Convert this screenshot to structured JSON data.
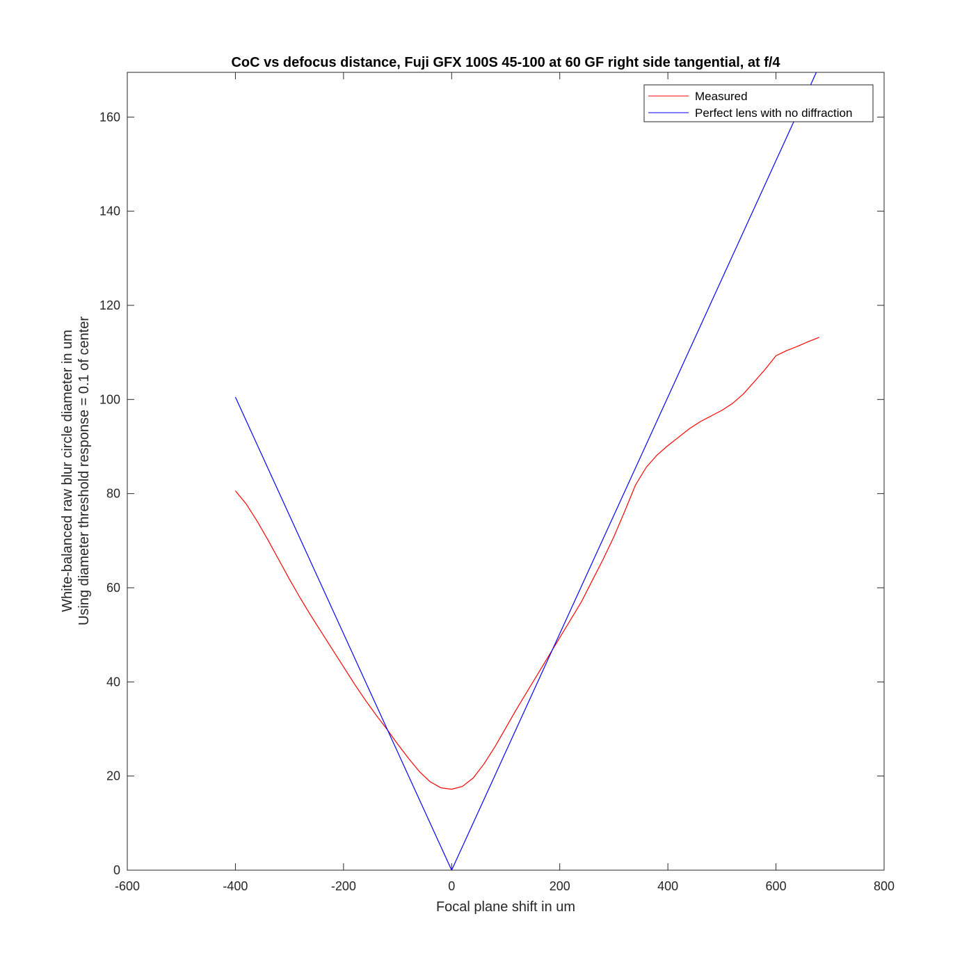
{
  "chart_data": {
    "type": "line",
    "title": "CoC vs defocus distance, Fuji GFX 100S 45-100 at 60 GF right side tangential, at f/4",
    "xlabel": "Focal plane shift in um",
    "ylabel": [
      "White-balanced raw blur circle diameter in um",
      "Using diameter threshold response = 0.1 of center"
    ],
    "xlim": [
      -600,
      800
    ],
    "ylim": [
      0,
      169.5
    ],
    "xticks": [
      -600,
      -400,
      -200,
      0,
      200,
      400,
      600,
      800
    ],
    "yticks": [
      0,
      20,
      40,
      60,
      80,
      100,
      120,
      140,
      160
    ],
    "xtick_labels": [
      "-600",
      "-400",
      "-200",
      "0",
      "200",
      "400",
      "600",
      "800"
    ],
    "ytick_labels": [
      "0",
      "20",
      "40",
      "60",
      "80",
      "100",
      "120",
      "140",
      "160"
    ],
    "grid": false,
    "box": true,
    "legend_position": "top-right",
    "series": [
      {
        "name": "Measured",
        "color": "#ff0000",
        "x": [
          -400,
          -380,
          -360,
          -340,
          -320,
          -300,
          -280,
          -260,
          -240,
          -220,
          -200,
          -180,
          -160,
          -140,
          -120,
          -100,
          -80,
          -60,
          -40,
          -20,
          0,
          20,
          40,
          60,
          80,
          100,
          120,
          140,
          160,
          180,
          200,
          220,
          240,
          260,
          280,
          300,
          320,
          340,
          360,
          380,
          400,
          420,
          440,
          460,
          480,
          500,
          520,
          540,
          560,
          580,
          600,
          620,
          640,
          660,
          680
        ],
        "y": [
          80.6,
          77.8,
          74.2,
          70.2,
          66.0,
          61.8,
          57.8,
          54.0,
          50.4,
          46.8,
          43.2,
          39.6,
          36.2,
          33.0,
          30.0,
          26.8,
          23.8,
          21.0,
          18.8,
          17.5,
          17.2,
          17.8,
          19.6,
          22.6,
          26.2,
          30.2,
          34.2,
          38.0,
          41.8,
          45.6,
          49.4,
          53.2,
          57.0,
          61.5,
          66.0,
          70.8,
          76.2,
          81.8,
          85.6,
          88.2,
          90.2,
          92.0,
          93.8,
          95.3,
          96.5,
          97.7,
          99.2,
          101.2,
          103.8,
          106.4,
          109.3,
          110.4,
          111.3,
          112.3,
          113.2
        ]
      },
      {
        "name": "Perfect lens with no diffraction",
        "color": "#0000ff",
        "x": [
          -400,
          0,
          679
        ],
        "y": [
          100.5,
          0,
          170.6
        ]
      }
    ]
  }
}
